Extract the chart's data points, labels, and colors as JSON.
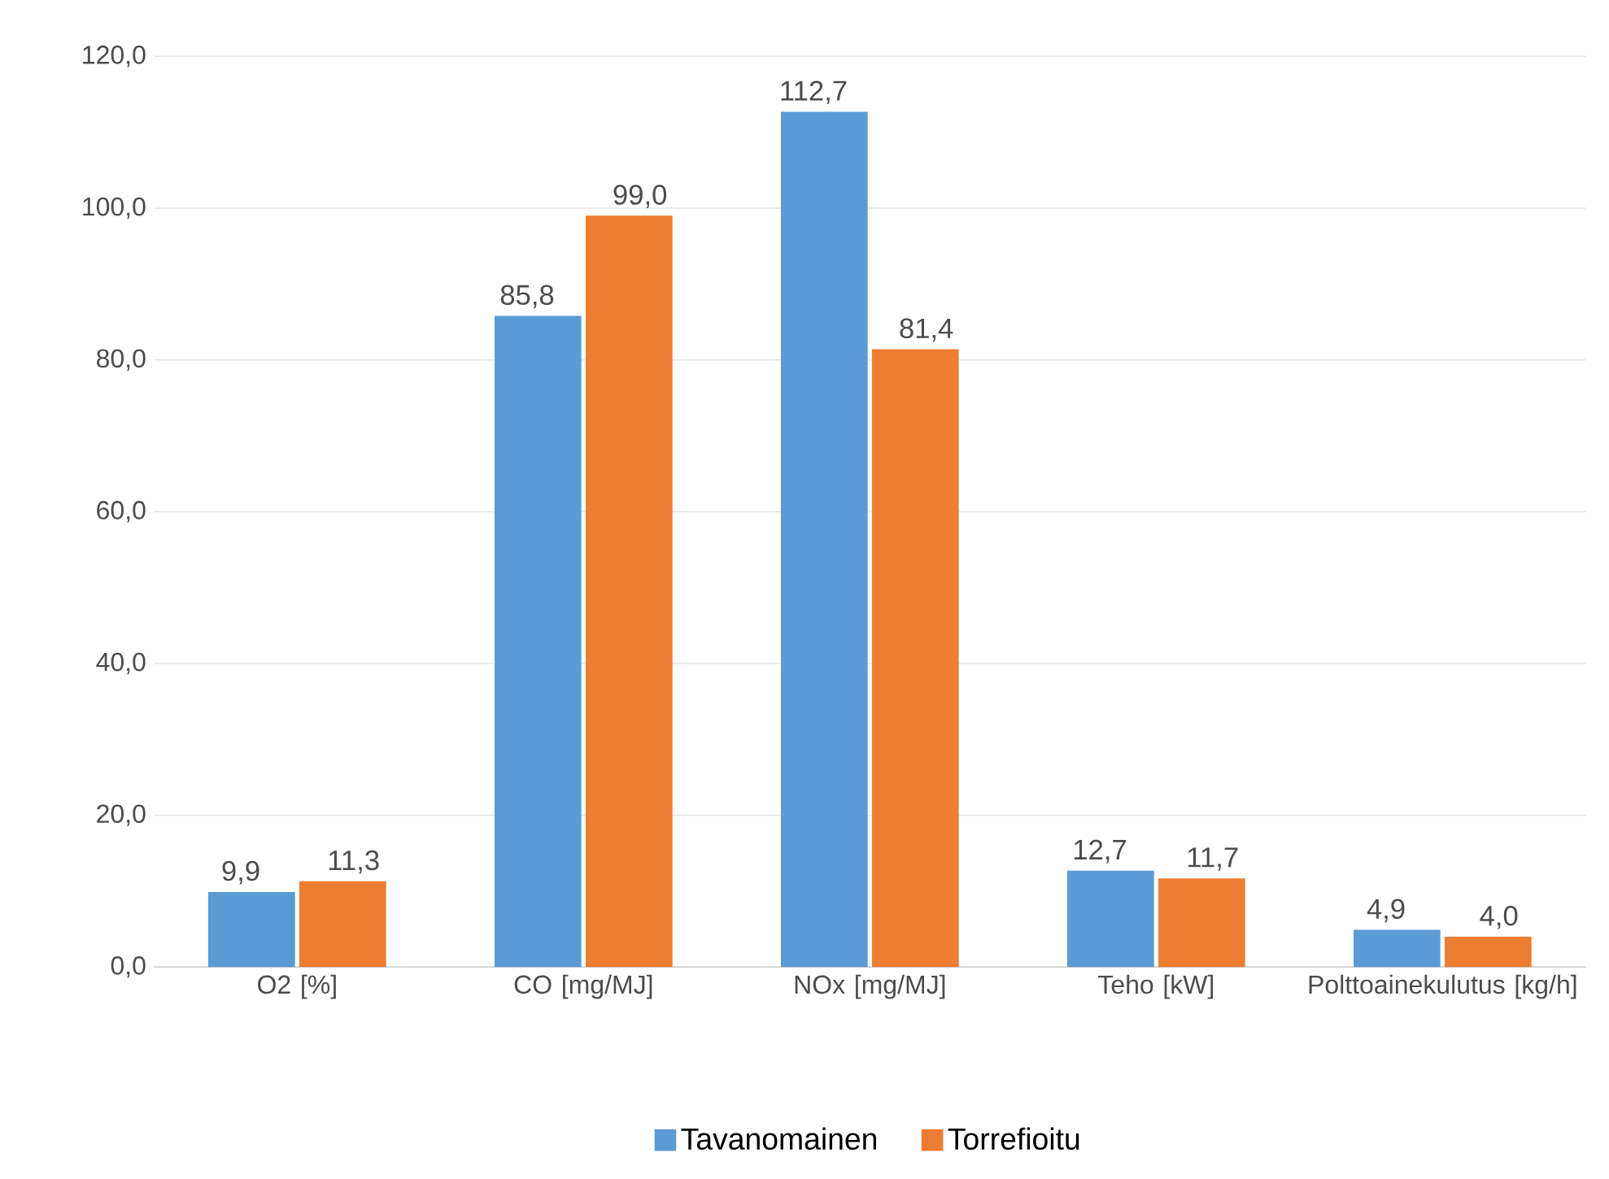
{
  "chart_data": {
    "type": "bar",
    "categories": [
      "O2 [%]",
      "CO [mg/MJ]",
      "NOx [mg/MJ]",
      "Teho [kW]",
      "Polttoainekulutus [kg/h]"
    ],
    "series": [
      {
        "name": "Tavanomainen",
        "color": "#5b9bd5",
        "values": [
          9.9,
          85.8,
          112.7,
          12.7,
          4.9
        ],
        "value_labels": [
          "9,9",
          "85,8",
          "112,7",
          "12,7",
          "4,9"
        ]
      },
      {
        "name": "Torrefioitu",
        "color": "#ed7d31",
        "values": [
          11.3,
          99.0,
          81.4,
          11.7,
          4.0
        ],
        "value_labels": [
          "11,3",
          "99,0",
          "81,4",
          "11,7",
          "4,0"
        ]
      }
    ],
    "ylim": [
      0,
      120
    ],
    "yticks": [
      {
        "value": 0,
        "label": "0,0"
      },
      {
        "value": 20,
        "label": "20,0"
      },
      {
        "value": 40,
        "label": "40,0"
      },
      {
        "value": 60,
        "label": "60,0"
      },
      {
        "value": 80,
        "label": "80,0"
      },
      {
        "value": 100,
        "label": "100,0"
      },
      {
        "value": 120,
        "label": "120,0"
      }
    ],
    "grid": "y",
    "legend": "bottom"
  }
}
